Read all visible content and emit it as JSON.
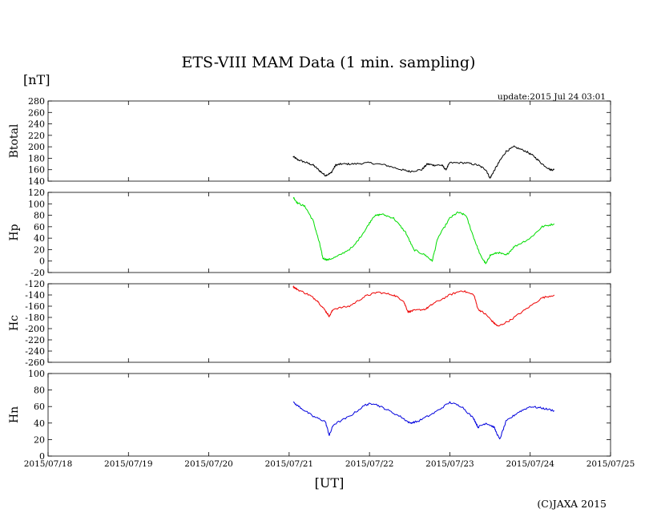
{
  "header": {
    "title": "ETS-VIII MAM Data (1 min. sampling)",
    "unit": "[nT]",
    "update": "update:2015 Jul 24 03:01"
  },
  "footer": {
    "x_axis_label": "[UT]",
    "copyright": "(C)JAXA 2015"
  },
  "chart_data": {
    "type": "line",
    "title": "ETS-VIII MAM Data (1 min. sampling)",
    "x_tick_labels": [
      "2015/07/18",
      "2015/07/19",
      "2015/07/20",
      "2015/07/21",
      "2015/07/22",
      "2015/07/23",
      "2015/07/24",
      "2015/07/25"
    ],
    "x_range_days": [
      0,
      7
    ],
    "panels": [
      {
        "ylabel": "Btotal",
        "ylim": [
          140,
          280
        ],
        "yticks": [
          140,
          160,
          180,
          200,
          220,
          240,
          260,
          280
        ],
        "color": "#000000",
        "series": [
          [
            3.05,
            183
          ],
          [
            3.1,
            178
          ],
          [
            3.2,
            173
          ],
          [
            3.3,
            168
          ],
          [
            3.38,
            158
          ],
          [
            3.45,
            150
          ],
          [
            3.52,
            154
          ],
          [
            3.58,
            168
          ],
          [
            3.65,
            170
          ],
          [
            3.8,
            170
          ],
          [
            4.0,
            172
          ],
          [
            4.2,
            168
          ],
          [
            4.4,
            160
          ],
          [
            4.5,
            157
          ],
          [
            4.65,
            160
          ],
          [
            4.72,
            170
          ],
          [
            4.8,
            168
          ],
          [
            4.9,
            168
          ],
          [
            4.95,
            160
          ],
          [
            5.0,
            172
          ],
          [
            5.2,
            172
          ],
          [
            5.35,
            168
          ],
          [
            5.45,
            160
          ],
          [
            5.5,
            145
          ],
          [
            5.55,
            158
          ],
          [
            5.62,
            175
          ],
          [
            5.7,
            192
          ],
          [
            5.8,
            200
          ],
          [
            5.95,
            192
          ],
          [
            6.05,
            183
          ],
          [
            6.15,
            170
          ],
          [
            6.25,
            160
          ],
          [
            6.3,
            160
          ]
        ]
      },
      {
        "ylabel": "Hp",
        "ylim": [
          -20,
          120
        ],
        "yticks": [
          -20,
          0,
          20,
          40,
          60,
          80,
          100,
          120
        ],
        "color": "#00dd00",
        "series": [
          [
            3.05,
            112
          ],
          [
            3.1,
            102
          ],
          [
            3.2,
            95
          ],
          [
            3.3,
            70
          ],
          [
            3.38,
            30
          ],
          [
            3.42,
            5
          ],
          [
            3.48,
            2
          ],
          [
            3.6,
            8
          ],
          [
            3.8,
            25
          ],
          [
            3.95,
            55
          ],
          [
            4.05,
            78
          ],
          [
            4.15,
            82
          ],
          [
            4.3,
            75
          ],
          [
            4.45,
            50
          ],
          [
            4.55,
            20
          ],
          [
            4.7,
            10
          ],
          [
            4.78,
            0
          ],
          [
            4.85,
            40
          ],
          [
            5.0,
            75
          ],
          [
            5.1,
            85
          ],
          [
            5.2,
            80
          ],
          [
            5.3,
            40
          ],
          [
            5.38,
            10
          ],
          [
            5.45,
            -5
          ],
          [
            5.5,
            10
          ],
          [
            5.6,
            15
          ],
          [
            5.7,
            10
          ],
          [
            5.8,
            25
          ],
          [
            6.0,
            40
          ],
          [
            6.15,
            60
          ],
          [
            6.3,
            65
          ]
        ]
      },
      {
        "ylabel": "Hc",
        "ylim": [
          -260,
          -120
        ],
        "yticks": [
          -260,
          -240,
          -220,
          -200,
          -180,
          -160,
          -140,
          -120
        ],
        "color": "#ee0000",
        "series": [
          [
            3.05,
            -125
          ],
          [
            3.1,
            -130
          ],
          [
            3.25,
            -140
          ],
          [
            3.35,
            -150
          ],
          [
            3.45,
            -168
          ],
          [
            3.5,
            -178
          ],
          [
            3.55,
            -165
          ],
          [
            3.75,
            -160
          ],
          [
            3.95,
            -142
          ],
          [
            4.1,
            -135
          ],
          [
            4.3,
            -140
          ],
          [
            4.42,
            -150
          ],
          [
            4.48,
            -170
          ],
          [
            4.55,
            -168
          ],
          [
            4.7,
            -165
          ],
          [
            4.8,
            -155
          ],
          [
            5.0,
            -140
          ],
          [
            5.15,
            -132
          ],
          [
            5.3,
            -140
          ],
          [
            5.35,
            -165
          ],
          [
            5.45,
            -175
          ],
          [
            5.55,
            -190
          ],
          [
            5.6,
            -196
          ],
          [
            5.75,
            -185
          ],
          [
            5.95,
            -165
          ],
          [
            6.15,
            -145
          ],
          [
            6.3,
            -140
          ]
        ]
      },
      {
        "ylabel": "Hn",
        "ylim": [
          0,
          100
        ],
        "yticks": [
          0,
          20,
          40,
          60,
          80,
          100
        ],
        "color": "#0000dd",
        "series": [
          [
            3.05,
            65
          ],
          [
            3.15,
            58
          ],
          [
            3.3,
            48
          ],
          [
            3.45,
            42
          ],
          [
            3.5,
            25
          ],
          [
            3.55,
            38
          ],
          [
            3.75,
            48
          ],
          [
            3.95,
            62
          ],
          [
            4.05,
            64
          ],
          [
            4.2,
            57
          ],
          [
            4.4,
            47
          ],
          [
            4.5,
            40
          ],
          [
            4.6,
            42
          ],
          [
            4.8,
            52
          ],
          [
            5.0,
            65
          ],
          [
            5.15,
            60
          ],
          [
            5.3,
            45
          ],
          [
            5.35,
            35
          ],
          [
            5.45,
            40
          ],
          [
            5.55,
            35
          ],
          [
            5.62,
            20
          ],
          [
            5.7,
            42
          ],
          [
            5.85,
            53
          ],
          [
            6.0,
            60
          ],
          [
            6.15,
            58
          ],
          [
            6.3,
            55
          ]
        ]
      }
    ]
  }
}
